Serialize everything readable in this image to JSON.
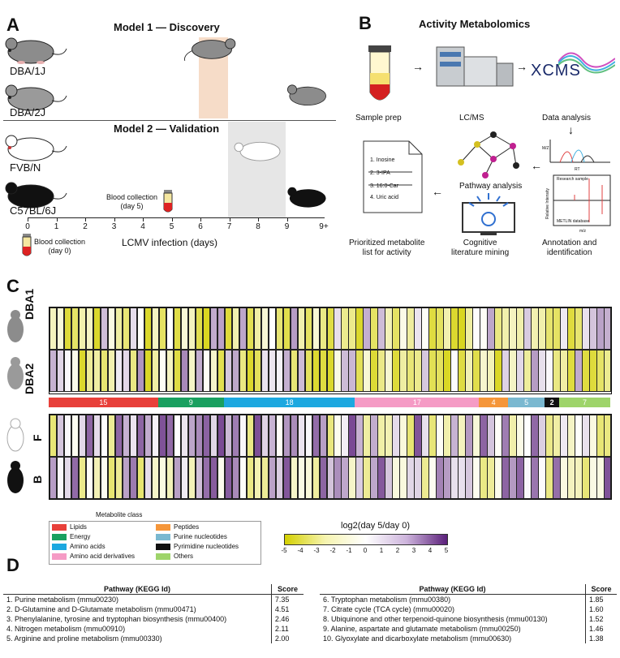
{
  "panels": {
    "a": "A",
    "b": "B",
    "c": "C",
    "d": "D"
  },
  "panelA": {
    "model1_title": "Model 1 — Discovery",
    "model2_title": "Model 2 — Validation",
    "strains": [
      "DBA/1J",
      "DBA/2J",
      "FVB/N",
      "C57BL/6J"
    ],
    "axis_ticks": [
      "0",
      "1",
      "2",
      "3",
      "4",
      "5",
      "6",
      "7",
      "8",
      "9",
      "9+"
    ],
    "axis_label": "LCMV infection (days)",
    "blood_day5": "Blood collection\n(day 5)",
    "blood_day0": "Blood collection\n(day 0)"
  },
  "panelB": {
    "title": "Activity Metabolomics",
    "sample_prep": "Sample prep",
    "lcms": "LC/MS",
    "xcms": "XCMS",
    "data_analysis": "Data analysis",
    "pathway_analysis": "Pathway analysis",
    "cognitive": "Cognitive\nliterature mining",
    "prioritized": "Prioritized metabolite\nlist for activity",
    "annotation": "Annotation and\nidentification",
    "list": [
      "1. Inosine",
      "2. 3-IPA",
      "3. 16:0-Car",
      "4. Uric acid"
    ],
    "spec_top": "Research sample",
    "spec_bottom": "METLIN database",
    "spec_axis": "m/z",
    "spec_ylabel": "Relative Intensity",
    "chrom_x": "RT",
    "chrom_y": "M/Z"
  },
  "panelC": {
    "rows_top": [
      "DBA1",
      "DBA2"
    ],
    "rows_bottom": [
      "F",
      "B"
    ],
    "class_bar": [
      {
        "label": "15",
        "color": "#e8403a",
        "n": 15
      },
      {
        "label": "9",
        "color": "#1aa060",
        "n": 9
      },
      {
        "label": "18",
        "color": "#1ca8e0",
        "n": 18
      },
      {
        "label": "17",
        "color": "#f59bc5",
        "n": 17
      },
      {
        "label": "4",
        "color": "#f5963a",
        "n": 4
      },
      {
        "label": "5",
        "color": "#7ab8d0",
        "n": 5
      },
      {
        "label": "2",
        "color": "#111111",
        "n": 2
      },
      {
        "label": "7",
        "color": "#9ed46a",
        "n": 7
      }
    ],
    "legend_title": "Metabolite class",
    "legend_items": [
      {
        "label": "Lipids",
        "color": "#e8403a"
      },
      {
        "label": "Energy",
        "color": "#1aa060"
      },
      {
        "label": "Amino acids",
        "color": "#1ca8e0"
      },
      {
        "label": "Amino acid derivatives",
        "color": "#f59bc5"
      },
      {
        "label": "Peptides",
        "color": "#f5963a"
      },
      {
        "label": "Purine nucleotides",
        "color": "#7ab8d0"
      },
      {
        "label": "Pyrimidine nucleotides",
        "color": "#111111"
      },
      {
        "label": "Others",
        "color": "#9ed46a"
      }
    ],
    "scale_title": "log2(day 5/day 0)",
    "scale_ticks": [
      "-5",
      "-4",
      "-3",
      "-2",
      "-1",
      "0",
      "1",
      "2",
      "3",
      "4",
      "5"
    ]
  },
  "panelD": {
    "header_pathway": "Pathway (KEGG Id)",
    "header_score": "Score",
    "left": [
      {
        "name": "1. Purine metabolism (mmu00230)",
        "score": "7.35"
      },
      {
        "name": "2. D-Glutamine and D-Glutamate metabolism (mmu00471)",
        "score": "4.51"
      },
      {
        "name": "3. Phenylalanine, tyrosine and tryptophan biosynthesis (mmu00400)",
        "score": "2.46"
      },
      {
        "name": "4. Nitrogen metabolism (mmu00910)",
        "score": "2.11"
      },
      {
        "name": "5. Arginine and proline metabolism (mmu00330)",
        "score": "2.00"
      }
    ],
    "right": [
      {
        "name": "6. Tryptophan metabolism (mmu00380)",
        "score": "1.85"
      },
      {
        "name": "7. Citrate cycle (TCA cycle) (mmu00020)",
        "score": "1.60"
      },
      {
        "name": "8. Ubiquinone and other terpenoid-quinone biosynthesis (mmu00130)",
        "score": "1.52"
      },
      {
        "name": "9. Alanine, aspartate and glutamate metabolism (mmu00250)",
        "score": "1.46"
      },
      {
        "name": "10. Glyoxylate and dicarboxylate metabolism (mmu00630)",
        "score": "1.38"
      }
    ]
  }
}
